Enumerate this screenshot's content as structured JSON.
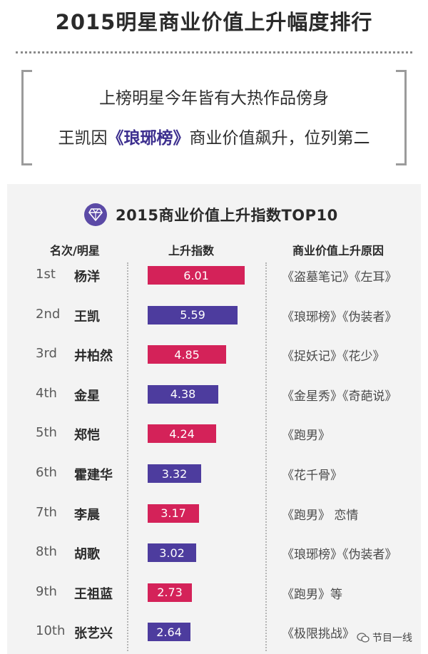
{
  "header": {
    "title": "2015明星商业价值上升幅度排行",
    "quote_line1": "上榜明星今年皆有大热作品傍身",
    "quote_line2_prefix": "王凯因",
    "quote_line2_highlight": "《琅琊榜》",
    "quote_line2_suffix": "商业价值飙升，位列第二"
  },
  "panel": {
    "title": "2015商业价值上升指数TOP10",
    "icon": "diamond-icon",
    "col_rank": "名次/明星",
    "col_index": "上升指数",
    "col_reason": "商业价值上升原因"
  },
  "colors": {
    "pink": "#d42259",
    "purple": "#4d3c9e"
  },
  "chart_data": {
    "type": "bar",
    "title": "2015商业价值上升指数TOP10",
    "ranks": [
      "1st",
      "2nd",
      "3rd",
      "4th",
      "5th",
      "6th",
      "7th",
      "8th",
      "9th",
      "10th"
    ],
    "categories": [
      "杨洋",
      "王凯",
      "井柏然",
      "金星",
      "郑恺",
      "霍建华",
      "李晨",
      "胡歌",
      "王祖蓝",
      "张艺兴"
    ],
    "values": [
      6.01,
      5.59,
      4.85,
      4.38,
      4.24,
      3.32,
      3.17,
      3.02,
      2.73,
      2.64
    ],
    "value_labels": [
      "6.01",
      "5.59",
      "4.85",
      "4.38",
      "4.24",
      "3.32",
      "3.17",
      "3.02",
      "2.73",
      "2.64"
    ],
    "reasons": [
      "《盗墓笔记》《左耳》",
      "《琅琊榜》《伪装者》",
      "《捉妖记》《花少》",
      "《金星秀》《奇葩说》",
      "《跑男》",
      "《花千骨》",
      "《跑男》 恋情",
      "《琅琊榜》《伪装者》",
      "《跑男》等",
      "《极限挑战》"
    ],
    "bar_colors": [
      "#d42259",
      "#4d3c9e",
      "#d42259",
      "#4d3c9e",
      "#d42259",
      "#4d3c9e",
      "#d42259",
      "#4d3c9e",
      "#d42259",
      "#4d3c9e"
    ]
  },
  "footer": {
    "icon": "wechat-icon",
    "label": "节目一线"
  }
}
